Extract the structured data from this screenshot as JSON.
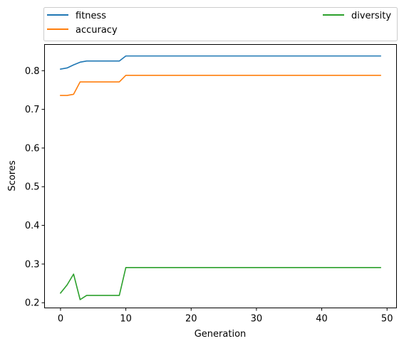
{
  "chart_data": {
    "type": "line",
    "xlabel": "Generation",
    "ylabel": "Scores",
    "xlim": [
      -2.45,
      51.45
    ],
    "ylim": [
      0.1866,
      0.8677
    ],
    "xticks": [
      0,
      10,
      20,
      30,
      40,
      50
    ],
    "yticks": [
      0.2,
      0.3,
      0.4,
      0.5,
      0.6,
      0.7,
      0.8
    ],
    "ytick_labels": [
      "0.2",
      "0.3",
      "0.4",
      "0.5",
      "0.6",
      "0.7",
      "0.8"
    ],
    "grid": false,
    "legend_placement": "above plot, expanded across width, two columns",
    "series": [
      {
        "name": "fitness",
        "color": "#1f77b4",
        "points": [
          [
            0,
            0.804
          ],
          [
            1,
            0.807
          ],
          [
            2,
            0.815
          ],
          [
            3,
            0.822
          ],
          [
            4,
            0.825
          ],
          [
            5,
            0.825
          ],
          [
            6,
            0.825
          ],
          [
            7,
            0.825
          ],
          [
            8,
            0.825
          ],
          [
            9,
            0.825
          ],
          [
            10,
            0.838
          ],
          [
            49,
            0.838
          ]
        ]
      },
      {
        "name": "accuracy",
        "color": "#ff7f0e",
        "points": [
          [
            0,
            0.736
          ],
          [
            1,
            0.736
          ],
          [
            2,
            0.739
          ],
          [
            3,
            0.771
          ],
          [
            4,
            0.771
          ],
          [
            5,
            0.771
          ],
          [
            6,
            0.771
          ],
          [
            7,
            0.771
          ],
          [
            8,
            0.771
          ],
          [
            9,
            0.771
          ],
          [
            10,
            0.788
          ],
          [
            49,
            0.788
          ]
        ]
      },
      {
        "name": "diversity",
        "color": "#2ca02c",
        "points": [
          [
            0,
            0.225
          ],
          [
            1,
            0.246
          ],
          [
            2,
            0.274
          ],
          [
            3,
            0.208
          ],
          [
            4,
            0.219
          ],
          [
            5,
            0.219
          ],
          [
            6,
            0.219
          ],
          [
            7,
            0.219
          ],
          [
            8,
            0.219
          ],
          [
            9,
            0.219
          ],
          [
            10,
            0.291
          ],
          [
            49,
            0.291
          ]
        ]
      }
    ]
  }
}
